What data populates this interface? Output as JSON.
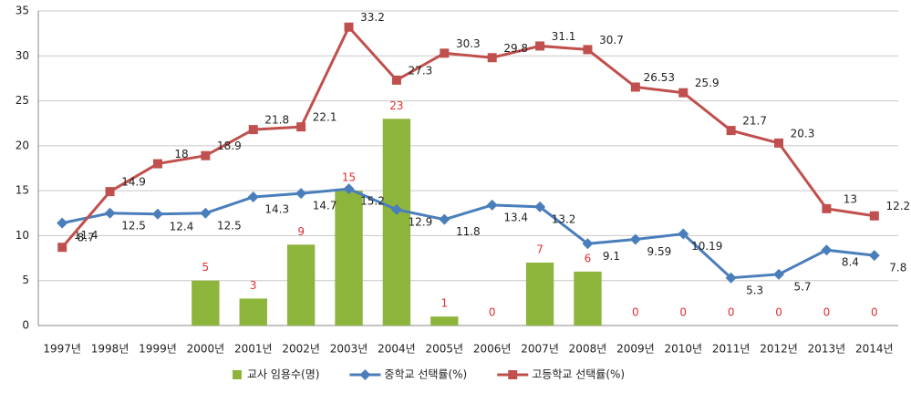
{
  "chart_data": {
    "type": "combo",
    "categories": [
      "1997년",
      "1998년",
      "1999년",
      "2000년",
      "2001년",
      "2002년",
      "2003년",
      "2004년",
      "2005년",
      "2006년",
      "2007년",
      "2008년",
      "2009년",
      "2010년",
      "2011년",
      "2012년",
      "2013년",
      "2014년"
    ],
    "series": [
      {
        "name": "교사 임용수(명)",
        "type": "bar",
        "color": "#8db53c",
        "label_color": "#e03030",
        "values": [
          null,
          null,
          null,
          5,
          3,
          9,
          15,
          23,
          1,
          0,
          7,
          6,
          0,
          0,
          0,
          0,
          0,
          0
        ]
      },
      {
        "name": "중학교 선택률(%)",
        "type": "line",
        "marker": "diamond",
        "color": "#4a7ebb",
        "values": [
          11.4,
          12.5,
          12.4,
          12.5,
          14.3,
          14.7,
          15.2,
          12.9,
          11.8,
          13.4,
          13.2,
          9.1,
          9.59,
          10.19,
          5.3,
          5.7,
          8.4,
          7.8
        ]
      },
      {
        "name": "고등학교 선택률(%)",
        "type": "line",
        "marker": "square",
        "color": "#c0504d",
        "values": [
          8.7,
          14.9,
          18,
          18.9,
          21.8,
          22.1,
          33.2,
          27.3,
          30.3,
          29.8,
          31.1,
          30.7,
          26.53,
          25.9,
          21.7,
          20.3,
          13,
          12.2
        ]
      }
    ],
    "ylim": [
      0,
      35
    ],
    "yticks": [
      0,
      5,
      10,
      15,
      20,
      25,
      30,
      35
    ],
    "grid": true,
    "legend": "bottom"
  }
}
